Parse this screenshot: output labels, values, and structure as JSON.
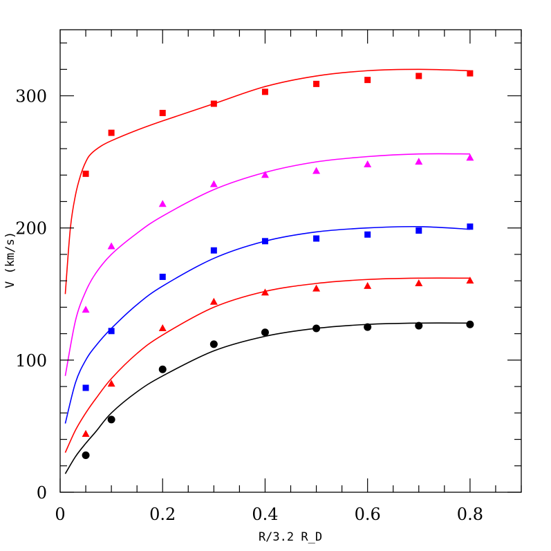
{
  "chart_data": {
    "type": "scatter",
    "title": "",
    "xlabel": "R/3.2 R_D",
    "ylabel": "V (km/s)",
    "xlim": [
      0,
      0.9
    ],
    "ylim": [
      0,
      350
    ],
    "xticks": [
      0,
      0.2,
      0.4,
      0.6,
      0.8
    ],
    "xtick_labels": [
      "0",
      "0.2",
      "0.4",
      "0.6",
      "0.8"
    ],
    "yticks": [
      0,
      100,
      200,
      300
    ],
    "ytick_labels": [
      "0",
      "100",
      "200",
      "300"
    ],
    "grid": false,
    "legend": "none",
    "series": [
      {
        "color": "#ff0000",
        "marker": "square",
        "x": [
          0.05,
          0.1,
          0.2,
          0.3,
          0.4,
          0.5,
          0.6,
          0.7,
          0.8
        ],
        "y": [
          241,
          272,
          287,
          294,
          303,
          309,
          312,
          315,
          317
        ],
        "curve_x": [
          0.01,
          0.02,
          0.03,
          0.04,
          0.05,
          0.06,
          0.08,
          0.1,
          0.15,
          0.2,
          0.3,
          0.4,
          0.5,
          0.6,
          0.7,
          0.8
        ],
        "curve_y": [
          150,
          200,
          225,
          240,
          250,
          256,
          262,
          266,
          274,
          281,
          294,
          307,
          315,
          319,
          320,
          319
        ]
      },
      {
        "color": "#ff00ff",
        "marker": "triangle",
        "x": [
          0.05,
          0.1,
          0.2,
          0.3,
          0.4,
          0.5,
          0.6,
          0.7,
          0.8
        ],
        "y": [
          138,
          186,
          218,
          233,
          240,
          243,
          248,
          250,
          253
        ],
        "curve_x": [
          0.01,
          0.03,
          0.05,
          0.07,
          0.1,
          0.15,
          0.2,
          0.3,
          0.4,
          0.5,
          0.6,
          0.7,
          0.8
        ],
        "curve_y": [
          88,
          130,
          152,
          166,
          180,
          196,
          209,
          229,
          242,
          250,
          254,
          256,
          256
        ]
      },
      {
        "color": "#0000ff",
        "marker": "square",
        "x": [
          0.05,
          0.1,
          0.2,
          0.3,
          0.4,
          0.5,
          0.6,
          0.7,
          0.8
        ],
        "y": [
          79,
          122,
          163,
          183,
          190,
          192,
          195,
          198,
          201
        ],
        "curve_x": [
          0.01,
          0.03,
          0.05,
          0.07,
          0.1,
          0.15,
          0.2,
          0.3,
          0.4,
          0.5,
          0.6,
          0.7,
          0.8
        ],
        "curve_y": [
          52,
          83,
          100,
          111,
          124,
          142,
          156,
          177,
          190,
          197,
          200,
          201,
          199
        ]
      },
      {
        "color": "#ff0000",
        "marker": "triangle",
        "x": [
          0.05,
          0.1,
          0.2,
          0.3,
          0.4,
          0.5,
          0.6,
          0.7,
          0.8
        ],
        "y": [
          44,
          82,
          124,
          144,
          151,
          154,
          156,
          158,
          160
        ],
        "curve_x": [
          0.01,
          0.03,
          0.05,
          0.07,
          0.1,
          0.15,
          0.2,
          0.3,
          0.4,
          0.5,
          0.6,
          0.7,
          0.8
        ],
        "curve_y": [
          30,
          47,
          60,
          71,
          86,
          105,
          119,
          140,
          152,
          158,
          161,
          162,
          162
        ]
      },
      {
        "color": "#000000",
        "marker": "circle",
        "x": [
          0.05,
          0.1,
          0.2,
          0.3,
          0.4,
          0.5,
          0.6,
          0.7,
          0.8
        ],
        "y": [
          28,
          55,
          93,
          112,
          121,
          124,
          125,
          126,
          127
        ],
        "curve_x": [
          0.01,
          0.03,
          0.05,
          0.07,
          0.1,
          0.15,
          0.2,
          0.3,
          0.4,
          0.5,
          0.6,
          0.7,
          0.8
        ],
        "curve_y": [
          14,
          27,
          37,
          46,
          60,
          76,
          88,
          107,
          118,
          124,
          127,
          128,
          128
        ]
      }
    ]
  }
}
